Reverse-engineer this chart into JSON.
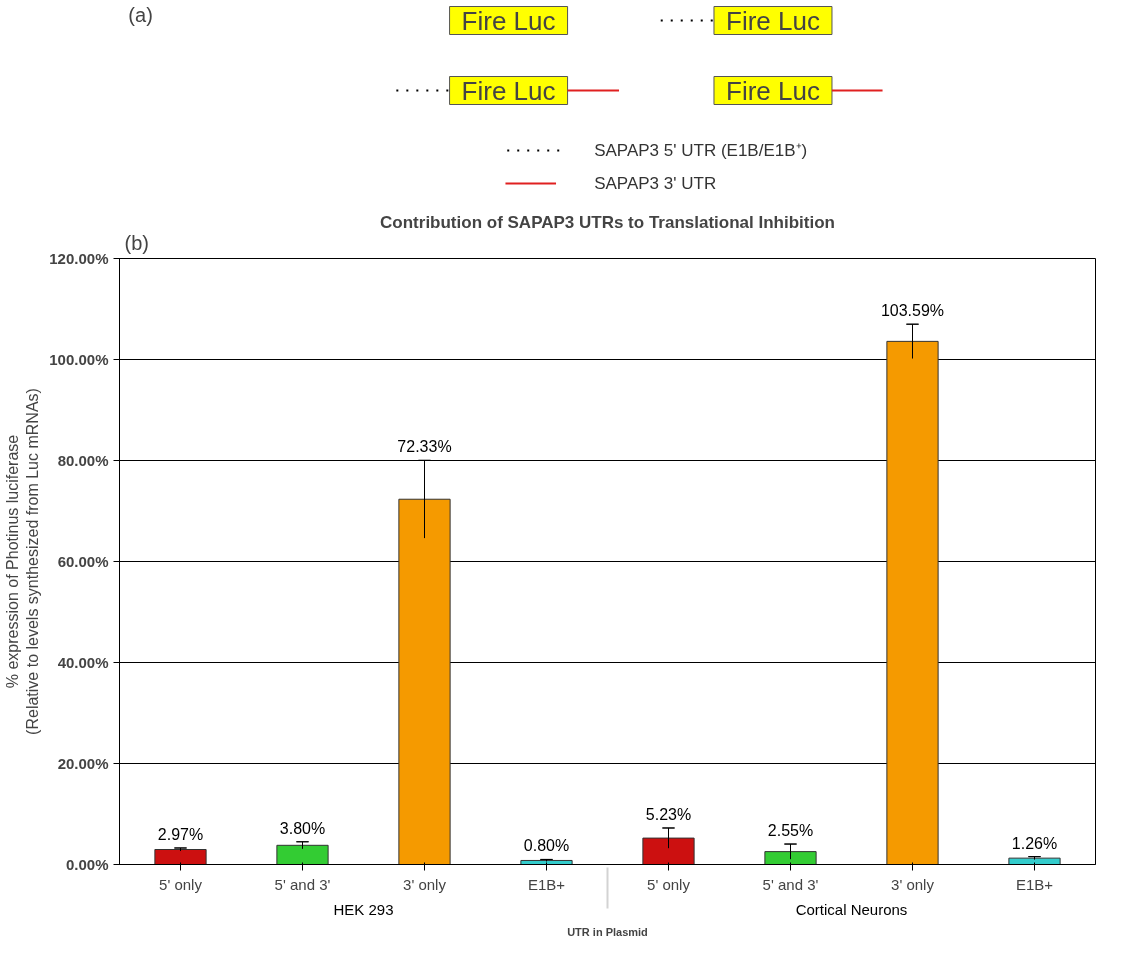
{
  "chart_data": [
    {
      "type": "other",
      "annotations": [
        "(a)",
        "Fire Luc",
        "Fire Luc",
        "Fire Luc",
        "Fire Luc",
        "SAPAP3 5' UTR (E1B/E1B⁺)",
        "SAPAP3 3' UTR"
      ]
    },
    {
      "type": "bar",
      "title": "Contribution of SAPAP3 UTRs to Translational Inhibition",
      "xlabel": "UTR in Plasmid",
      "ylabel": "% expression of Photinus luciferase\n(Relative to levels synthesized from Luc mRNAs)",
      "categories": [
        "5' only",
        "5' and 3'",
        "3' only",
        "E1B+",
        "5' only",
        "5' and 3'",
        "3' only",
        "E1B+"
      ],
      "values": [
        2.97,
        3.8,
        72.33,
        0.8,
        5.23,
        2.55,
        103.59,
        1.26
      ],
      "colors": [
        "#cc1010",
        "#33cc33",
        "#f59a00",
        "#33cccc",
        "#cc1010",
        "#33cc33",
        "#f59a00",
        "#33cccc"
      ],
      "errors": [
        0.3,
        0.7,
        7.7,
        0.2,
        2.0,
        1.5,
        3.4,
        0.3
      ],
      "value_labels": [
        "2.97%",
        "3.80%",
        "72.33%",
        "0.80%",
        "5.23%",
        "2.55%",
        "103.59%",
        "1.26%"
      ],
      "ylim": [
        0,
        120
      ],
      "yticks": [
        {
          "value": 0,
          "label": "0.00%"
        },
        {
          "value": 20,
          "label": "20.00%"
        },
        {
          "value": 40,
          "label": "40.00%"
        },
        {
          "value": 60,
          "label": "60.00%"
        },
        {
          "value": 80,
          "label": "80.00%"
        },
        {
          "value": 100,
          "label": "100.00%"
        },
        {
          "value": 120,
          "label": "120.00%"
        }
      ],
      "grid": "y",
      "annotations": [
        "(b)",
        "HEK 293",
        "Cortical Neurons"
      ]
    }
  ]
}
